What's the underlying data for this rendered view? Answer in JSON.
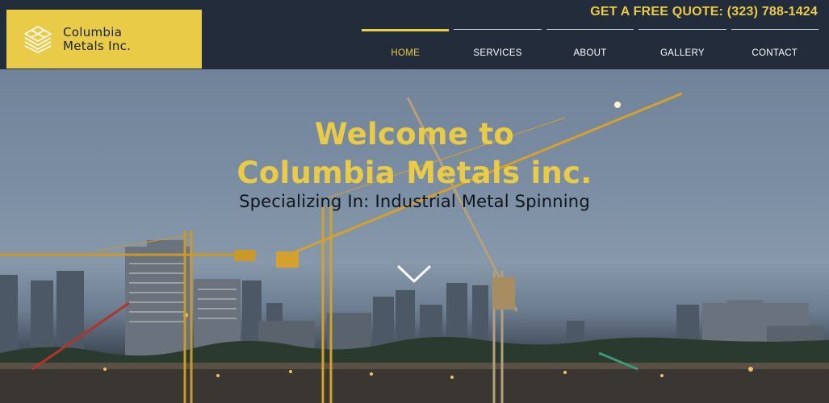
{
  "header": {
    "logo": {
      "line1": "Columbia",
      "line2": "Metals Inc."
    },
    "quote": "GET A FREE QUOTE: (323) 788-1424",
    "nav": [
      {
        "label": "HOME",
        "active": true
      },
      {
        "label": "SERVICES",
        "active": false
      },
      {
        "label": "ABOUT",
        "active": false
      },
      {
        "label": "GALLERY",
        "active": false
      },
      {
        "label": "CONTACT",
        "active": false
      }
    ]
  },
  "hero": {
    "title_line1": "Welcome to",
    "title_line2": "Columbia Metals inc.",
    "tagline": "Specializing In: Industrial Metal Spinning",
    "scroll_icon": "chevron-down-icon"
  },
  "colors": {
    "accent": "#e9cb47",
    "header_bg": "#232c3b",
    "nav_text": "#ffffff"
  }
}
